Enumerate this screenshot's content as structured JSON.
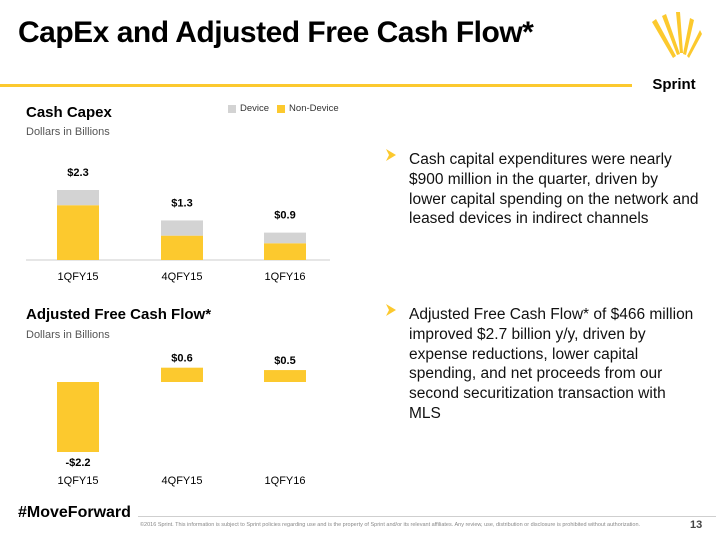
{
  "header": {
    "title": "CapEx and Adjusted Free Cash Flow*"
  },
  "brand": {
    "logo_text": "Sprint",
    "accent": "#fcc92e"
  },
  "chart_data": [
    {
      "type": "bar",
      "title": "Cash Capex",
      "subtitle": "Dollars in Billions",
      "categories": [
        "1QFY15",
        "4QFY15",
        "1QFY16"
      ],
      "stacked": true,
      "legend": "top",
      "series": [
        {
          "name": "Device",
          "color": "#d3d3d3",
          "values": [
            0.5,
            0.5,
            0.35
          ]
        },
        {
          "name": "Non-Device",
          "color": "#fcc92e",
          "values": [
            1.8,
            0.8,
            0.55
          ]
        }
      ],
      "totals": [
        2.3,
        1.3,
        0.9
      ],
      "data_labels": [
        "$2.3",
        "$1.3",
        "$0.9"
      ],
      "ylim": [
        0,
        2.6
      ],
      "grid": false
    },
    {
      "type": "bar",
      "title": "Adjusted Free Cash Flow*",
      "subtitle": "Dollars in Billions",
      "categories": [
        "1QFY15",
        "4QFY15",
        "1QFY16"
      ],
      "series": [
        {
          "color": "#fcc92e",
          "values": [
            -2.2,
            0.6,
            0.5
          ]
        }
      ],
      "data_labels": [
        "-$2.2",
        "$0.6",
        "$0.5"
      ],
      "ylim": [
        -2.5,
        0.9
      ],
      "grid": false
    }
  ],
  "bullets": [
    {
      "text": "Cash capital expenditures were nearly $900 million in the quarter, driven by lower capital spending on the network and leased devices in indirect channels"
    },
    {
      "text": "Adjusted Free Cash Flow* of $466 million improved $2.7 billion y/y, driven by expense reductions, lower capital spending, and net proceeds from our second securitization transaction with MLS"
    }
  ],
  "footer": {
    "hashtag": "#MoveForward",
    "disclaimer": "©2016 Sprint. This information is subject to Sprint policies regarding use and is the property of Sprint and/or its relevant affiliates. Any review, use, distribution or disclosure is prohibited without authorization.",
    "page_number": "13"
  }
}
